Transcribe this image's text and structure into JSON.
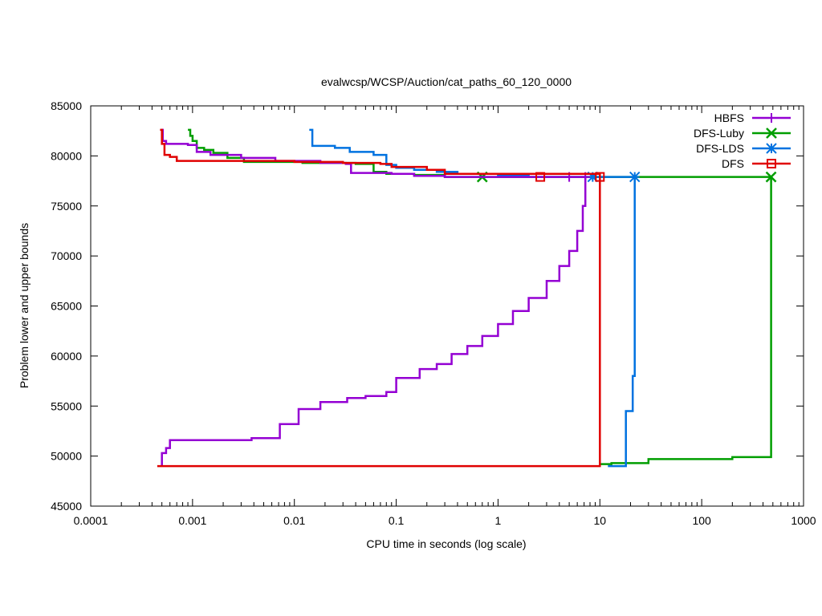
{
  "chart_data": {
    "type": "line",
    "title": "evalwcsp/WCSP/Auction/cat_paths_60_120_0000",
    "xlabel": "CPU time in seconds (log scale)",
    "ylabel": "Problem lower and upper bounds",
    "x_scale": "log",
    "xlim": [
      0.0001,
      1000
    ],
    "ylim": [
      45000,
      85000
    ],
    "x_ticks": [
      0.0001,
      0.001,
      0.01,
      0.1,
      1,
      10,
      100,
      1000
    ],
    "x_tick_labels": [
      "0.0001",
      "0.001",
      "0.01",
      "0.1",
      "1",
      "10",
      "100",
      "1000"
    ],
    "y_ticks": [
      45000,
      50000,
      55000,
      60000,
      65000,
      70000,
      75000,
      80000,
      85000
    ],
    "y_tick_labels": [
      "45000",
      "50000",
      "55000",
      "60000",
      "65000",
      "70000",
      "75000",
      "80000",
      "85000"
    ],
    "grid": false,
    "legend_position": "top-right",
    "series": [
      {
        "name": "HBFS",
        "color": "#9400d3",
        "marker": "plus",
        "upper": [
          [
            0.00049,
            82600
          ],
          [
            0.00051,
            81500
          ],
          [
            0.00055,
            81200
          ],
          [
            0.0009,
            81100
          ],
          [
            0.0011,
            80400
          ],
          [
            0.0015,
            80100
          ],
          [
            0.003,
            79800
          ],
          [
            0.0065,
            79500
          ],
          [
            0.018,
            79300
          ],
          [
            0.032,
            79200
          ],
          [
            0.036,
            78300
          ],
          [
            0.09,
            78200
          ],
          [
            0.15,
            78000
          ],
          [
            0.3,
            77900
          ],
          [
            7.2,
            77900
          ]
        ],
        "lower": [
          [
            0.0005,
            49000
          ],
          [
            0.0005,
            50300
          ],
          [
            0.00055,
            50800
          ],
          [
            0.0006,
            51600
          ],
          [
            0.0038,
            51800
          ],
          [
            0.0072,
            53200
          ],
          [
            0.011,
            54700
          ],
          [
            0.018,
            55400
          ],
          [
            0.033,
            55800
          ],
          [
            0.05,
            56000
          ],
          [
            0.08,
            56400
          ],
          [
            0.1,
            57800
          ],
          [
            0.17,
            58700
          ],
          [
            0.25,
            59200
          ],
          [
            0.35,
            60200
          ],
          [
            0.5,
            61000
          ],
          [
            0.7,
            62000
          ],
          [
            1.0,
            63200
          ],
          [
            1.4,
            64500
          ],
          [
            2.0,
            65800
          ],
          [
            3.0,
            67500
          ],
          [
            4.0,
            69000
          ],
          [
            5.0,
            70500
          ],
          [
            6.0,
            72500
          ],
          [
            6.8,
            75000
          ],
          [
            7.2,
            77900
          ]
        ],
        "marker_points": [
          [
            5.0,
            77900
          ],
          [
            7.2,
            77900
          ]
        ]
      },
      {
        "name": "DFS-Luby",
        "color": "#009e00",
        "marker": "cross",
        "upper": [
          [
            0.0009,
            82600
          ],
          [
            0.00095,
            82000
          ],
          [
            0.001,
            81500
          ],
          [
            0.0011,
            80800
          ],
          [
            0.0013,
            80600
          ],
          [
            0.0016,
            80300
          ],
          [
            0.0022,
            79800
          ],
          [
            0.0032,
            79400
          ],
          [
            0.012,
            79300
          ],
          [
            0.04,
            79200
          ],
          [
            0.06,
            78400
          ],
          [
            0.08,
            78200
          ],
          [
            0.15,
            78100
          ],
          [
            0.3,
            77900
          ],
          [
            480,
            77900
          ]
        ],
        "lower": [
          [
            10,
            49200
          ],
          [
            13,
            49300
          ],
          [
            30,
            49700
          ],
          [
            200,
            49900
          ],
          [
            480,
            49900
          ],
          [
            480,
            77900
          ]
        ],
        "marker_points": [
          [
            0.7,
            77900
          ],
          [
            480,
            77900
          ]
        ]
      },
      {
        "name": "DFS-LDS",
        "color": "#0072e0",
        "marker": "star",
        "upper": [
          [
            0.014,
            82600
          ],
          [
            0.015,
            81000
          ],
          [
            0.025,
            80800
          ],
          [
            0.035,
            80400
          ],
          [
            0.06,
            80100
          ],
          [
            0.08,
            79100
          ],
          [
            0.1,
            78800
          ],
          [
            0.15,
            78600
          ],
          [
            0.25,
            78400
          ],
          [
            0.4,
            78200
          ],
          [
            1.0,
            78000
          ],
          [
            2.0,
            77900
          ],
          [
            22,
            77900
          ]
        ],
        "lower": [
          [
            12,
            49000
          ],
          [
            18,
            49000
          ],
          [
            18,
            54500
          ],
          [
            20,
            54500
          ],
          [
            21,
            58000
          ],
          [
            22,
            77900
          ]
        ],
        "marker_points": [
          [
            8.5,
            77900
          ],
          [
            22,
            77900
          ]
        ]
      },
      {
        "name": "DFS",
        "color": "#e00000",
        "marker": "square",
        "upper": [
          [
            0.00048,
            82600
          ],
          [
            0.0005,
            81200
          ],
          [
            0.00053,
            80100
          ],
          [
            0.0006,
            79900
          ],
          [
            0.0007,
            79500
          ],
          [
            0.005,
            79500
          ],
          [
            0.01,
            79400
          ],
          [
            0.03,
            79300
          ],
          [
            0.07,
            79200
          ],
          [
            0.09,
            78900
          ],
          [
            0.2,
            78600
          ],
          [
            0.3,
            78200
          ],
          [
            10,
            77900
          ]
        ],
        "lower": [
          [
            0.00045,
            49000
          ],
          [
            10,
            49000
          ],
          [
            10,
            77900
          ]
        ],
        "marker_points": [
          [
            2.6,
            77900
          ],
          [
            10,
            77900
          ]
        ]
      }
    ]
  }
}
